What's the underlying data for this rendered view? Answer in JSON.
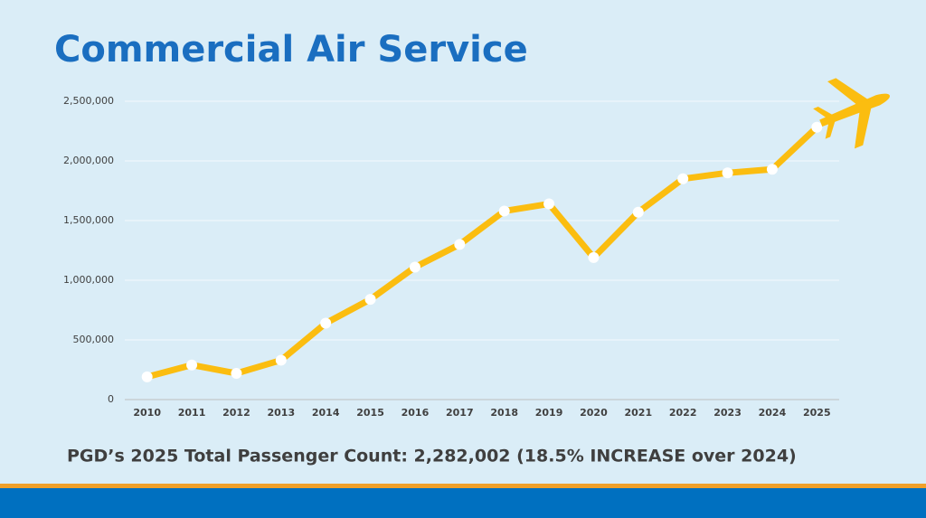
{
  "chart_data": {
    "type": "line",
    "title": "Commercial Air Service",
    "categories": [
      "2010",
      "2011",
      "2012",
      "2013",
      "2014",
      "2015",
      "2016",
      "2017",
      "2018",
      "2019",
      "2020",
      "2021",
      "2022",
      "2023",
      "2024",
      "2025"
    ],
    "values": [
      190000,
      290000,
      220000,
      330000,
      640000,
      840000,
      1110000,
      1300000,
      1580000,
      1640000,
      1190000,
      1570000,
      1850000,
      1900000,
      1930000,
      2282002
    ],
    "color": "#fbbd10",
    "marker_color": "#ffffff",
    "ylim": [
      0,
      2500000
    ],
    "yticks": [
      0,
      {
        "value": 500000,
        "label": "500,000"
      },
      {
        "value": 1000000,
        "label": "1,000,000"
      },
      {
        "value": 1500000,
        "label": "1,500,000"
      },
      {
        "value": 2000000,
        "label": "2,000,000"
      },
      {
        "value": 2500000,
        "label": "2,500,000"
      }
    ],
    "grid": true,
    "annotation": "PGD’s 2025 Total Passenger Count: 2,282,002 (18.5% INCREASE over 2024)"
  }
}
